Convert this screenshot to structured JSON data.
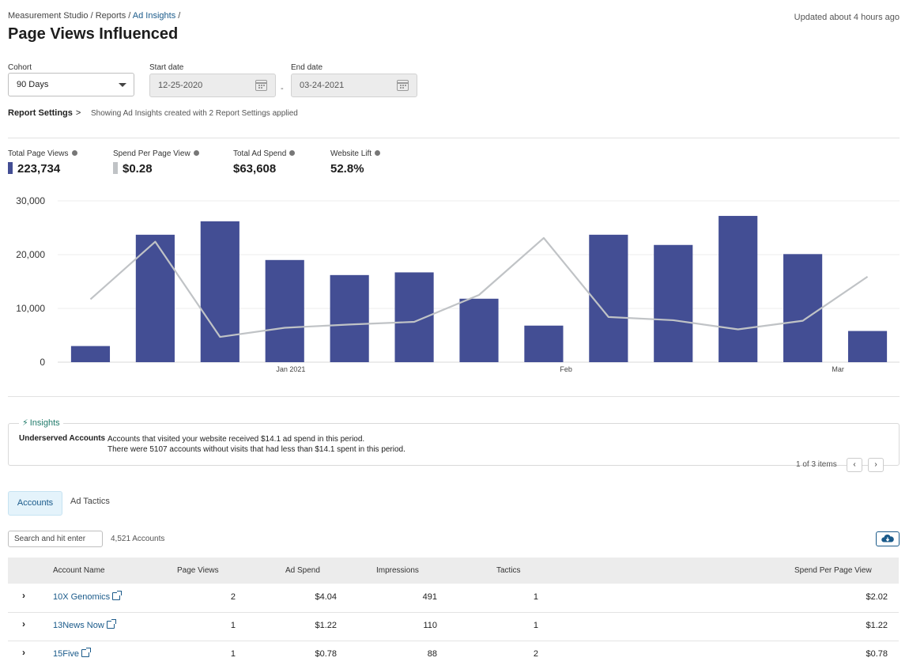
{
  "breadcrumb": {
    "items": [
      "Measurement Studio",
      "Reports"
    ],
    "current": "Ad Insights",
    "sep": "/"
  },
  "updated": "Updated about 4 hours ago",
  "title": "Page Views Influenced",
  "filters": {
    "cohort_label": "Cohort",
    "cohort_value": "90 Days",
    "start_label": "Start date",
    "start_value": "12-25-2020",
    "end_label": "End date",
    "end_value": "03-24-2021",
    "sep": "-"
  },
  "report_settings": {
    "label": "Report Settings",
    "chevron": ">",
    "note": "Showing Ad Insights created with 2 Report Settings applied"
  },
  "metrics": [
    {
      "label": "Total Page Views",
      "value": "223,734",
      "swatch": "#434e94"
    },
    {
      "label": "Spend Per Page View",
      "value": "$0.28",
      "swatch": "#c0c3c6"
    },
    {
      "label": "Total Ad Spend",
      "value": "$63,608"
    },
    {
      "label": "Website Lift",
      "value": "52.8%"
    }
  ],
  "chart_data": {
    "type": "bar",
    "y_ticks": [
      "30,000",
      "20,000",
      "10,000",
      "0"
    ],
    "ylim": [
      0,
      30000
    ],
    "x_ticks": [
      "Jan 2021",
      "Feb",
      "Mar"
    ],
    "grid": true,
    "series": [
      {
        "values": [
          3000,
          23700,
          26200,
          19000,
          16200,
          16700,
          11800,
          6800,
          23700,
          21800,
          27200,
          20100,
          5800
        ],
        "color": "#434e94"
      },
      {
        "values": [
          11700,
          22400,
          4700,
          6400,
          7000,
          7500,
          12500,
          23100,
          8400,
          7800,
          6100,
          7700,
          15900
        ],
        "color": "#c0c3c6",
        "type": "line"
      }
    ]
  },
  "insights": {
    "legend": "Insights",
    "bolt": "⚡",
    "title": "Underserved Accounts",
    "line1": "Accounts that visited your website received $14.1 ad spend in this period.",
    "line2": "There were 5107 accounts without visits that had less than $14.1 spent in this period.",
    "pager": "1 of 3 items",
    "prev": "‹",
    "next": "›"
  },
  "tabs": {
    "accounts": "Accounts",
    "ad_tactics": "Ad Tactics"
  },
  "table_toolbar": {
    "search_placeholder": "Search and hit enter",
    "count": "4,521 Accounts"
  },
  "table": {
    "headers": {
      "account": "Account Name",
      "page_views": "Page Views",
      "ad_spend": "Ad Spend",
      "impressions": "Impressions",
      "tactics": "Tactics",
      "sppv": "Spend Per Page View"
    },
    "rows": [
      {
        "expand": "›",
        "account": "10X Genomics",
        "page_views": "2",
        "ad_spend": "$4.04",
        "impressions": "491",
        "tactics": "1",
        "sppv": "$2.02"
      },
      {
        "expand": "›",
        "account": "13News Now",
        "page_views": "1",
        "ad_spend": "$1.22",
        "impressions": "110",
        "tactics": "1",
        "sppv": "$1.22"
      },
      {
        "expand": "›",
        "account": "15Five",
        "page_views": "1",
        "ad_spend": "$0.78",
        "impressions": "88",
        "tactics": "2",
        "sppv": "$0.78"
      }
    ]
  },
  "colors": {
    "accent": "#1a5a8a",
    "bar": "#434e94",
    "line": "#c0c3c6",
    "insight": "#1f7a6a"
  }
}
